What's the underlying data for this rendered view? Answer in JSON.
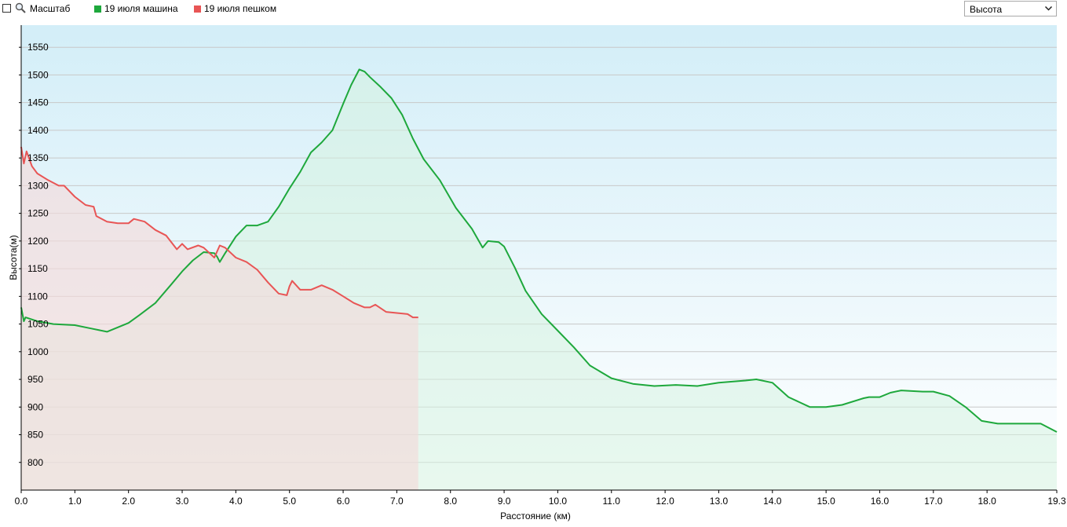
{
  "toolbar": {
    "zoom_label": "Масштаб",
    "zoom_checked": false,
    "dropdown_value": "Высота"
  },
  "legend": [
    {
      "name": "19 июля машина",
      "color": "#1ea83c"
    },
    {
      "name": "19 июля пешком",
      "color": "#e85555"
    }
  ],
  "chart_data": {
    "type": "area",
    "xlabel": "Расстояние (км)",
    "ylabel": "Высота(м)",
    "xlim": [
      0,
      19.3
    ],
    "ylim": [
      750,
      1590
    ],
    "x_ticks": [
      "0.0",
      "1.0",
      "2.0",
      "3.0",
      "4.0",
      "5.0",
      "6.0",
      "7.0",
      "8.0",
      "9.0",
      "10.0",
      "11.0",
      "12.0",
      "13.0",
      "14.0",
      "15.0",
      "16.0",
      "17.0",
      "18.0",
      "19.3"
    ],
    "y_ticks": [
      "800",
      "850",
      "900",
      "950",
      "1000",
      "1050",
      "1100",
      "1150",
      "1200",
      "1250",
      "1300",
      "1350",
      "1400",
      "1450",
      "1500",
      "1550"
    ],
    "grid": true,
    "legend_position": "top",
    "series": [
      {
        "name": "19 июля машина",
        "color": "#1ea83c",
        "fill": "#d6f2e0",
        "x": [
          0,
          0.05,
          0.08,
          0.3,
          0.6,
          1.0,
          1.3,
          1.6,
          1.8,
          2.0,
          2.2,
          2.5,
          2.8,
          3.0,
          3.2,
          3.4,
          3.6,
          3.65,
          3.7,
          3.8,
          4.0,
          4.2,
          4.4,
          4.6,
          4.8,
          5.0,
          5.2,
          5.4,
          5.6,
          5.8,
          6.0,
          6.15,
          6.3,
          6.4,
          6.5,
          6.7,
          6.9,
          7.1,
          7.3,
          7.5,
          7.8,
          8.1,
          8.4,
          8.6,
          8.7,
          8.9,
          9.0,
          9.2,
          9.4,
          9.7,
          10.0,
          10.3,
          10.6,
          11.0,
          11.4,
          11.8,
          12.2,
          12.6,
          13.0,
          13.5,
          13.7,
          14.0,
          14.3,
          14.7,
          15.0,
          15.3,
          15.7,
          15.8,
          16.0,
          16.2,
          16.4,
          16.8,
          17.0,
          17.3,
          17.6,
          17.9,
          18.2,
          18.6,
          19.0,
          19.3
        ],
        "y": [
          1080,
          1055,
          1062,
          1055,
          1050,
          1048,
          1042,
          1036,
          1044,
          1052,
          1066,
          1088,
          1122,
          1145,
          1165,
          1180,
          1178,
          1172,
          1162,
          1178,
          1208,
          1228,
          1228,
          1235,
          1262,
          1295,
          1325,
          1360,
          1378,
          1400,
          1448,
          1482,
          1510,
          1506,
          1496,
          1478,
          1458,
          1428,
          1385,
          1348,
          1310,
          1260,
          1222,
          1188,
          1200,
          1198,
          1190,
          1152,
          1110,
          1068,
          1038,
          1008,
          975,
          952,
          942,
          938,
          940,
          938,
          944,
          948,
          950,
          944,
          918,
          900,
          900,
          904,
          916,
          918,
          918,
          926,
          930,
          928,
          928,
          920,
          900,
          875,
          870,
          870,
          870,
          855
        ]
      },
      {
        "name": "19 июля пешком",
        "color": "#e85555",
        "fill": "#f3dada",
        "x": [
          0,
          0.05,
          0.1,
          0.2,
          0.3,
          0.5,
          0.7,
          0.8,
          1.0,
          1.2,
          1.35,
          1.4,
          1.6,
          1.8,
          2.0,
          2.1,
          2.3,
          2.5,
          2.7,
          2.9,
          3.0,
          3.1,
          3.3,
          3.4,
          3.6,
          3.7,
          3.8,
          4.0,
          4.2,
          4.4,
          4.6,
          4.8,
          4.95,
          5.0,
          5.05,
          5.2,
          5.4,
          5.6,
          5.8,
          6.0,
          6.2,
          6.4,
          6.5,
          6.6,
          6.8,
          7.0,
          7.2,
          7.3,
          7.4
        ],
        "y": [
          1370,
          1340,
          1362,
          1335,
          1322,
          1310,
          1300,
          1300,
          1280,
          1265,
          1262,
          1245,
          1235,
          1232,
          1232,
          1240,
          1235,
          1220,
          1210,
          1185,
          1195,
          1185,
          1192,
          1188,
          1170,
          1192,
          1188,
          1170,
          1162,
          1148,
          1125,
          1105,
          1102,
          1118,
          1128,
          1112,
          1112,
          1120,
          1112,
          1100,
          1088,
          1080,
          1080,
          1085,
          1072,
          1070,
          1068,
          1062,
          1062
        ]
      }
    ]
  }
}
